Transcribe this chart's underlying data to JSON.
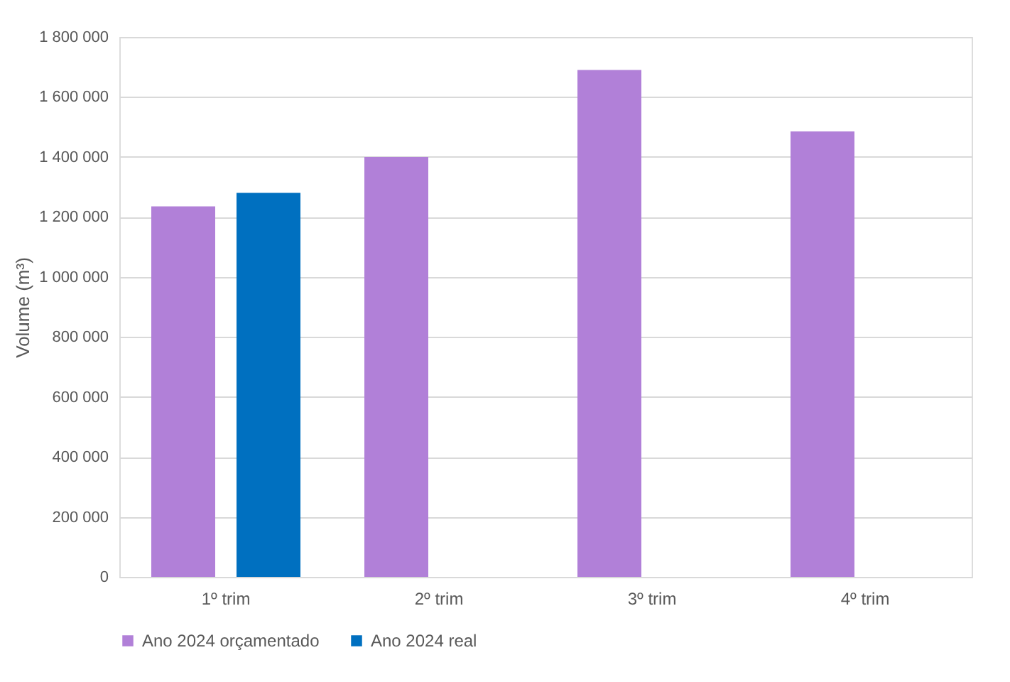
{
  "chart_data": {
    "type": "bar",
    "ylabel": "Volume (m³)",
    "categories": [
      "1º trim",
      "2º trim",
      "3º trim",
      "4º trim"
    ],
    "series": [
      {
        "name": "Ano 2024 orçamentado",
        "color": "#b180d8",
        "values": [
          1235000,
          1400000,
          1690000,
          1485000
        ]
      },
      {
        "name": "Ano 2024 real",
        "color": "#0070c0",
        "values": [
          1280000,
          null,
          null,
          null
        ]
      }
    ],
    "ylim": [
      0,
      1800000
    ],
    "yticks": [
      {
        "value": 0,
        "label": "0"
      },
      {
        "value": 200000,
        "label": "200 000"
      },
      {
        "value": 400000,
        "label": "400 000"
      },
      {
        "value": 600000,
        "label": "600 000"
      },
      {
        "value": 800000,
        "label": "800 000"
      },
      {
        "value": 1000000,
        "label": "1 000 000"
      },
      {
        "value": 1200000,
        "label": "1 200 000"
      },
      {
        "value": 1400000,
        "label": "1 400 000"
      },
      {
        "value": 1600000,
        "label": "1 600 000"
      },
      {
        "value": 1800000,
        "label": "1 800 000"
      }
    ],
    "grid": "y",
    "legend": "bottom"
  }
}
